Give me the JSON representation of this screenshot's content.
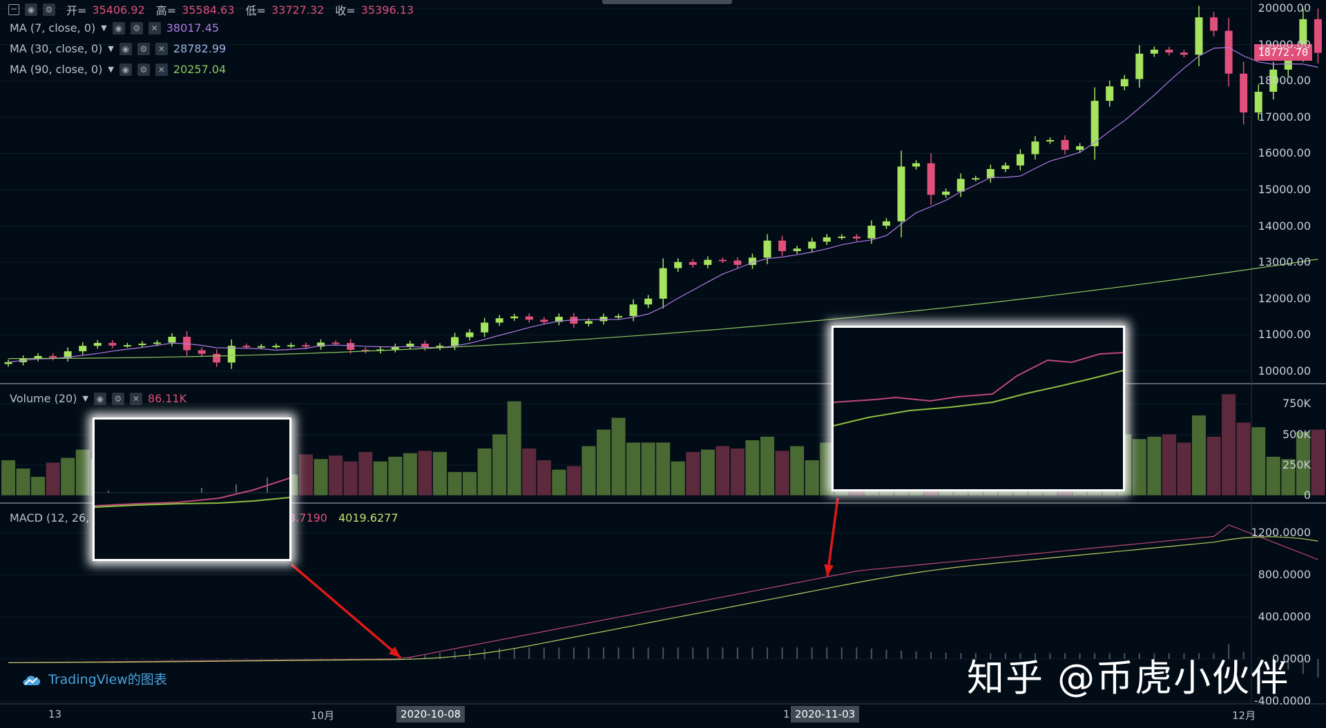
{
  "header": {
    "collapse_icon": "collapse-square-icon",
    "ohlc": [
      {
        "k": "开=",
        "v": "35406.92"
      },
      {
        "k": "高=",
        "v": "35584.63"
      },
      {
        "k": "低=",
        "v": "33727.32"
      },
      {
        "k": "收=",
        "v": "35396.13"
      }
    ]
  },
  "indicators": {
    "ma7": {
      "label": "MA (7, close, 0)",
      "value": "38017.45",
      "color": "#b07ce8"
    },
    "ma30": {
      "label": "MA (30, close, 0)",
      "value": "28782.99",
      "color": "#9fb4e6"
    },
    "ma90": {
      "label": "MA (90, close, 0)",
      "value": "20257.04",
      "color": "#8fc860"
    },
    "volume": {
      "label": "Volume (20)",
      "value": "86.11K",
      "color": "#e0507a"
    },
    "macd": {
      "label": "MACD (12, 26,",
      "value1": "3.7190",
      "value2": "4019.6277",
      "color1": "#e0507a",
      "color2": "#c8e070"
    }
  },
  "price_tag": "18772.70",
  "price_axis": [
    "20000.00",
    "19000.00",
    "18000.00",
    "17000.00",
    "16000.00",
    "15000.00",
    "14000.00",
    "13000.00",
    "12000.00",
    "11000.00",
    "10000.00"
  ],
  "volume_axis": [
    "750K",
    "500K",
    "250K",
    "0"
  ],
  "macd_axis": [
    "1200.0000",
    "800.0000",
    "400.0000",
    "0.0000",
    "-400.0000"
  ],
  "x_axis": {
    "l13": "13",
    "oct": "10月",
    "nov_partial": "11",
    "dec": "12月"
  },
  "date_tags": {
    "d1": "2020-10-08",
    "d2": "2020-11-03"
  },
  "branding": {
    "tradingview": "TradingView的图表",
    "watermark": "知乎 @币虎小伙伴"
  },
  "colors": {
    "up": "#a6e35e",
    "down": "#e0507a",
    "background": "#020c16",
    "arrow": "#e01818"
  }
}
